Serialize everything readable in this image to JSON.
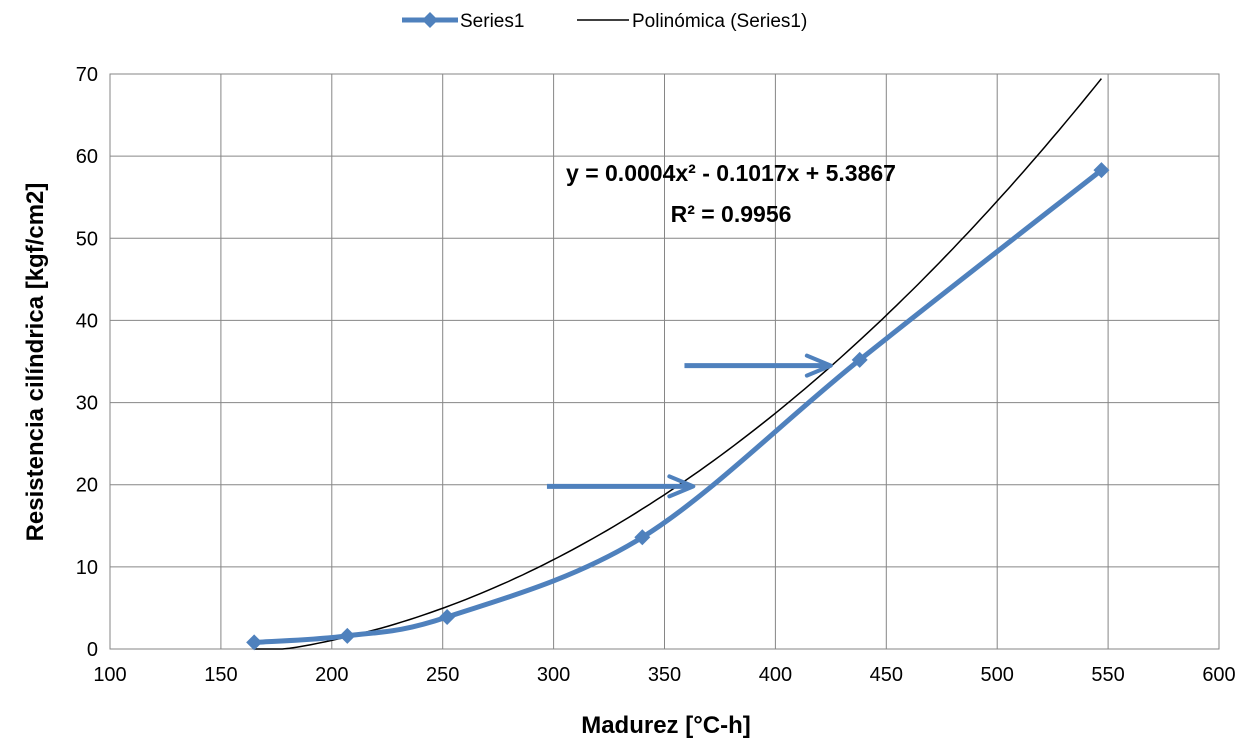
{
  "chart_data": {
    "type": "line",
    "title": "",
    "xlabel": "Madurez [°C-h]",
    "ylabel": "Resistencia cilíndrica [kgf/cm2]",
    "xlim": [
      100,
      600
    ],
    "ylim": [
      0,
      70
    ],
    "xticks": [
      100,
      150,
      200,
      250,
      300,
      350,
      400,
      450,
      500,
      550,
      600
    ],
    "yticks": [
      0,
      10,
      20,
      30,
      40,
      50,
      60,
      70
    ],
    "grid": true,
    "legend_position": "top",
    "series": [
      {
        "name": "Series1",
        "color": "#4F81BD",
        "marker": "diamond",
        "smooth": true,
        "points": [
          {
            "x": 165,
            "y": 0.8
          },
          {
            "x": 207,
            "y": 1.6
          },
          {
            "x": 252,
            "y": 3.9
          },
          {
            "x": 340,
            "y": 13.6
          },
          {
            "x": 438,
            "y": 35.2
          },
          {
            "x": 547,
            "y": 58.3
          }
        ]
      }
    ],
    "trendline": {
      "name": "Polinómica (Series1)",
      "color": "#000000",
      "type": "polynomial",
      "coefficients": [
        0.0004,
        -0.1017,
        5.3867
      ],
      "x_range": [
        165,
        547
      ],
      "equation": "y = 0.0004x² - 0.1017x + 5.3867",
      "r_squared": "R² = 0.9956"
    },
    "annotations": [
      {
        "type": "arrow",
        "color": "#4F81BD",
        "x_start": 297,
        "x_end": 363,
        "y": 19.8
      },
      {
        "type": "arrow",
        "color": "#4F81BD",
        "x_start": 359,
        "x_end": 425,
        "y": 34.5
      }
    ]
  }
}
